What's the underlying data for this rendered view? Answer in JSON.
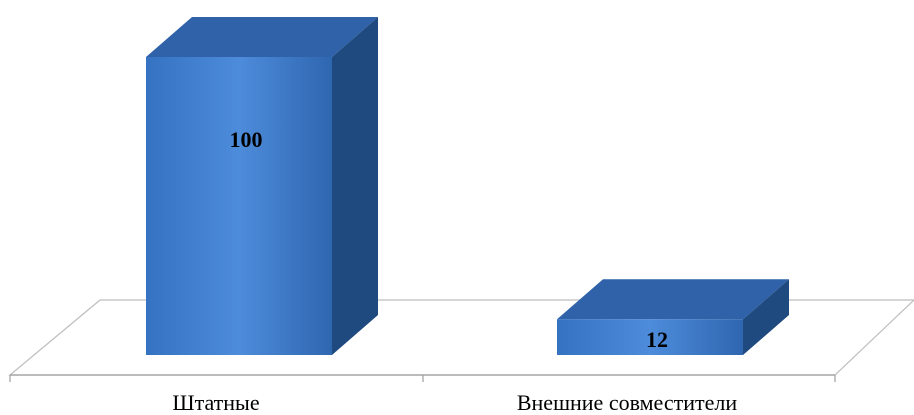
{
  "chart_data": {
    "type": "bar",
    "style": "3d-column",
    "categories": [
      "Штатные",
      "Внешние совместители"
    ],
    "values": [
      100,
      12
    ],
    "data_labels": [
      "100",
      "12"
    ],
    "title": "",
    "xlabel": "",
    "ylabel": "",
    "ylim": [
      0,
      100
    ],
    "grid": false,
    "legend": "none",
    "colors": {
      "bar_front": "#3a78c8",
      "bar_front_light": "#4a8ad8",
      "bar_side": "#1f4a80",
      "bar_top": "#2f62a8",
      "floor_line": "#b8b8b8",
      "axis_line": "#a0a0a0"
    }
  }
}
